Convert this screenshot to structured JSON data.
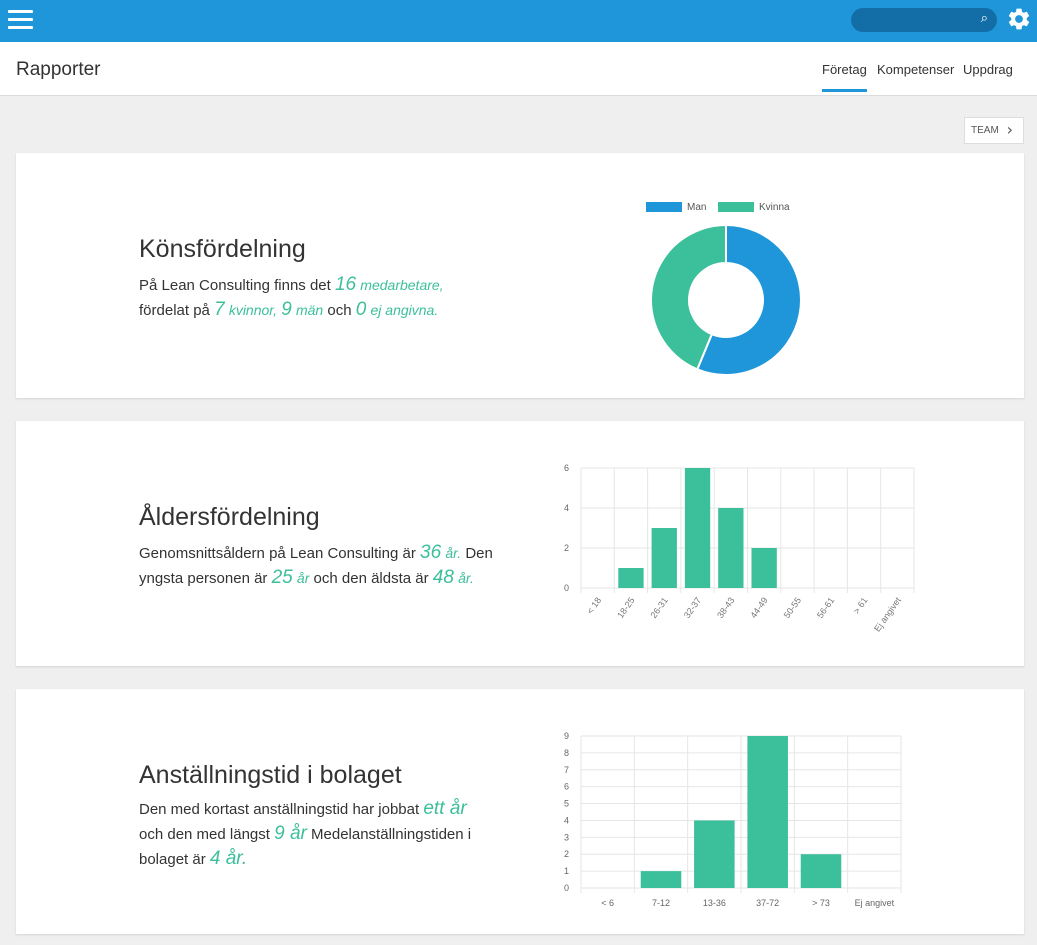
{
  "header": {
    "title": "Rapporter",
    "tabs": [
      {
        "label": "Företag",
        "active": true
      },
      {
        "label": "Kompetenser",
        "active": false
      },
      {
        "label": "Uppdrag",
        "active": false
      }
    ]
  },
  "search": {
    "placeholder": ""
  },
  "team_button": {
    "label": "TEAM"
  },
  "colors": {
    "brand": "#1e96d9",
    "accent": "#3cbf9b",
    "man": "#1e96d9",
    "kvinna": "#3cbf9b"
  },
  "gender": {
    "title": "Könsfördelning",
    "text": {
      "p1": "På Lean Consulting finns det",
      "total": "16",
      "total_label": "medarbetare,",
      "p2": "fördelat på",
      "women": "7",
      "women_label": "kvinnor,",
      "men": "9",
      "men_label": "män",
      "p3": "och",
      "unknown": "0",
      "unknown_label": "ej angivna."
    }
  },
  "age": {
    "title": "Åldersfördelning",
    "text": {
      "p1": "Genomsnittsåldern på Lean Consulting är",
      "avg": "36",
      "avg_unit": "år.",
      "p2": "Den yngsta personen är",
      "min": "25",
      "min_unit": "år",
      "p3": "och den äldsta är",
      "max": "48",
      "max_unit": "år."
    }
  },
  "tenure": {
    "title": "Anställningstid i bolaget",
    "text": {
      "p1": "Den med kortast anställningstid har jobbat",
      "shortest": "ett år",
      "p2": "och den med längst",
      "longest": "9 år",
      "p3": "Medelanställningstiden i bolaget är",
      "average": "4 år."
    }
  },
  "chart_data": [
    {
      "type": "pie",
      "categories": [
        "Man",
        "Kvinna"
      ],
      "values": [
        9,
        7
      ],
      "legend": "top",
      "colors": [
        "#1e96d9",
        "#3cbf9b"
      ]
    },
    {
      "type": "bar",
      "categories": [
        "< 18",
        "18-25",
        "26-31",
        "32-37",
        "38-43",
        "44-49",
        "50-55",
        "56-61",
        "> 61",
        "Ej angivet"
      ],
      "values": [
        0,
        1,
        3,
        6,
        4,
        2,
        0,
        0,
        0,
        0
      ],
      "yticks": [
        0,
        2,
        4,
        6
      ],
      "ylim": [
        0,
        6
      ],
      "grid": true,
      "color": "#3cbf9b"
    },
    {
      "type": "bar",
      "categories": [
        "< 6",
        "7-12",
        "13-36",
        "37-72",
        "> 73",
        "Ej angivet"
      ],
      "values": [
        0,
        1,
        4,
        9,
        2,
        0
      ],
      "yticks": [
        0,
        1,
        2,
        3,
        4,
        5,
        6,
        7,
        8,
        9
      ],
      "ylim": [
        0,
        9
      ],
      "grid": true,
      "color": "#3cbf9b"
    }
  ]
}
